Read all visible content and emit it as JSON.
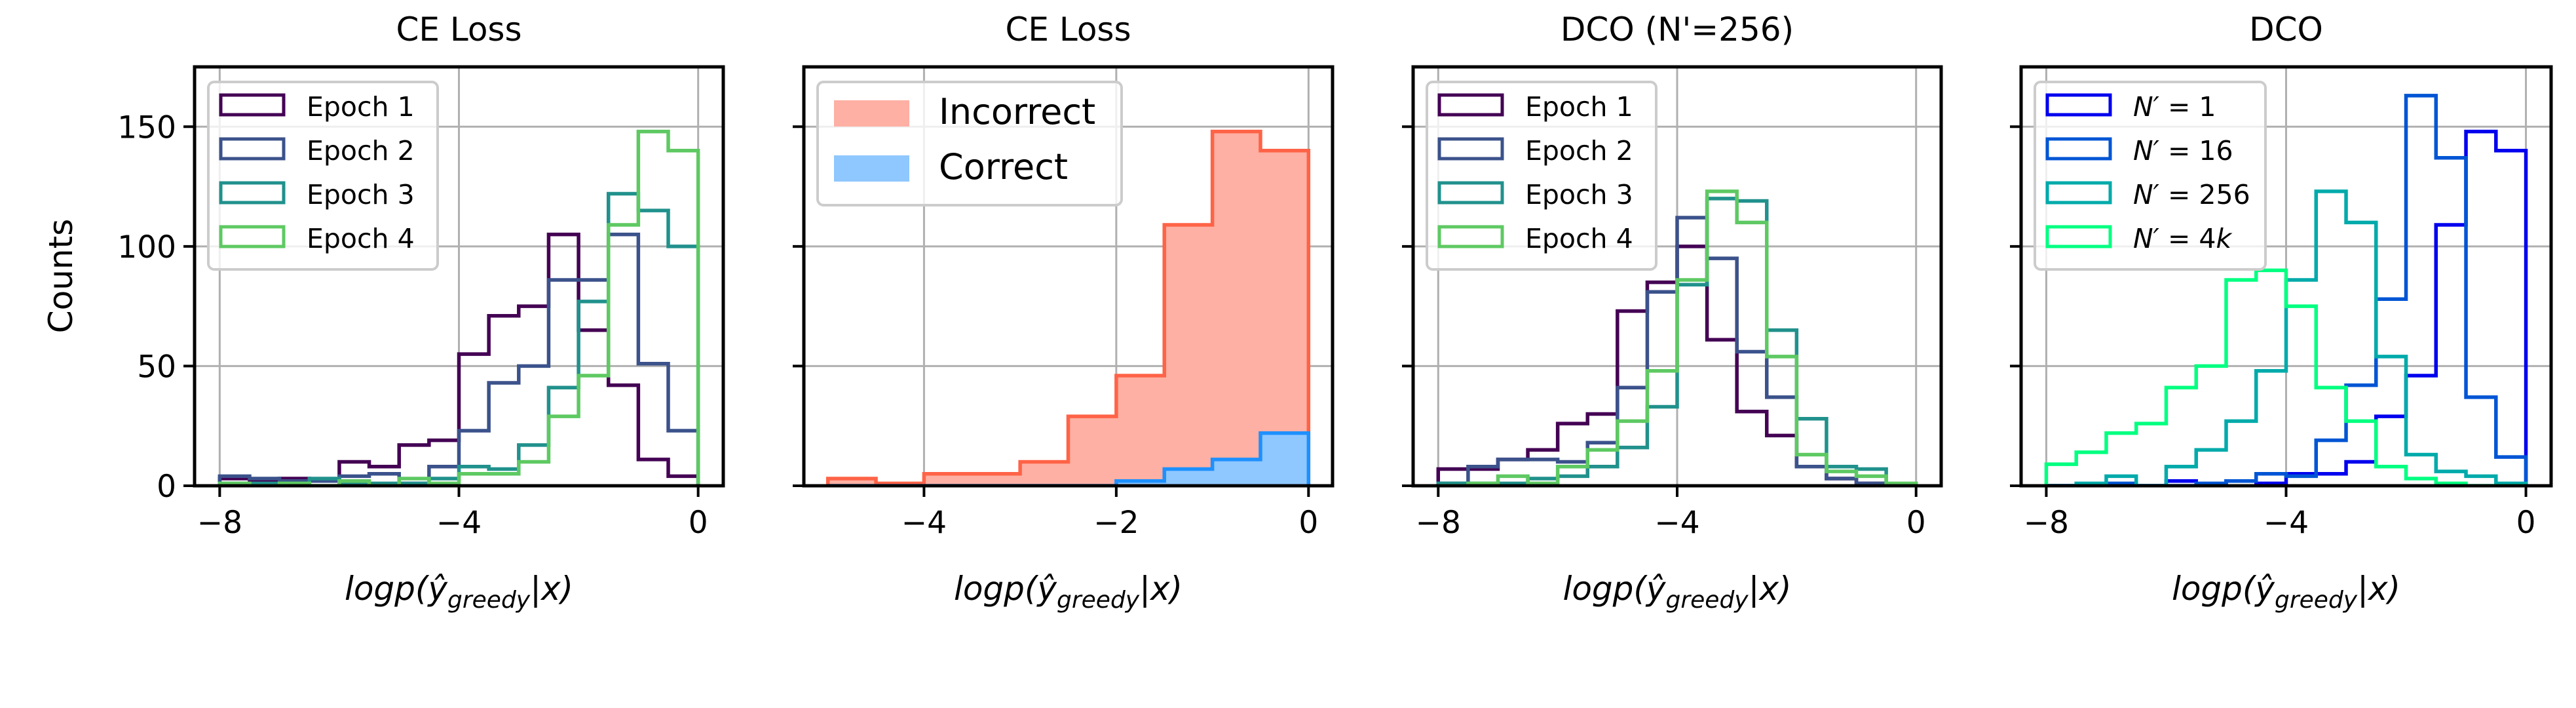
{
  "figure": {
    "ylabel": "Counts",
    "xlabel_main": "logp(",
    "xlabel_hat": "ŷ",
    "xlabel_sub": "greedy",
    "xlabel_tail": "|x)"
  },
  "chart_data": [
    {
      "type": "histogram-step",
      "title": "CE Loss",
      "xlabel": "logp(ŷ_greedy|x)",
      "ylabel": "Counts",
      "bin_edges_start": -8,
      "bin_width": 0.5,
      "xlim": [
        -8.42,
        0.42
      ],
      "ylim": [
        0,
        175
      ],
      "xticks": [
        -8,
        -4,
        0
      ],
      "xtick_labels": [
        "−8",
        "−4",
        "0"
      ],
      "yticks": [
        0,
        50,
        100,
        150
      ],
      "ytick_labels": [
        "0",
        "50",
        "100",
        "150"
      ],
      "grid": true,
      "legend_position": "upper-left",
      "legend_size": "small",
      "series": [
        {
          "name": "Epoch 1",
          "color": "#440154",
          "fill": false,
          "values": [
            3,
            2,
            3,
            2,
            10,
            8,
            17,
            19,
            55,
            71,
            75,
            105,
            65,
            42,
            11,
            4
          ]
        },
        {
          "name": "Epoch 2",
          "color": "#3b528b",
          "fill": false,
          "values": [
            4,
            3,
            2,
            2,
            4,
            5,
            1,
            8,
            23,
            43,
            50,
            86,
            86,
            105,
            51,
            23
          ]
        },
        {
          "name": "Epoch 3",
          "color": "#21918c",
          "fill": false,
          "values": [
            1,
            1,
            1,
            3,
            1,
            1,
            1,
            3,
            8,
            7,
            17,
            41,
            77,
            122,
            115,
            100
          ]
        },
        {
          "name": "Epoch 4",
          "color": "#5ec962",
          "fill": false,
          "values": [
            1,
            0,
            1,
            0,
            2,
            0,
            3,
            1,
            5,
            5,
            10,
            29,
            46,
            109,
            148,
            140
          ]
        }
      ]
    },
    {
      "type": "histogram-step-filled",
      "title": "CE Loss",
      "xlabel": "logp(ŷ_greedy|x)",
      "bin_edges_start": -5,
      "bin_width": 0.5,
      "xlim": [
        -5.25,
        0.25
      ],
      "ylim": [
        0,
        175
      ],
      "xticks": [
        -4,
        -2,
        0
      ],
      "xtick_labels": [
        "−4",
        "−2",
        "0"
      ],
      "yticks": [
        0,
        50,
        100,
        150
      ],
      "grid": true,
      "legend_position": "upper-left",
      "legend_size": "large",
      "series": [
        {
          "name": "Incorrect",
          "color": "#ff6347",
          "fill_color": "#fdb0a3",
          "fill": true,
          "values": [
            3,
            1,
            5,
            5,
            10,
            29,
            46,
            109,
            148,
            140
          ]
        },
        {
          "name": "Correct",
          "color": "#1e90ff",
          "fill_color": "#8fc7ff",
          "fill": true,
          "values": [
            0,
            0,
            0,
            0,
            0,
            0,
            2,
            7,
            11,
            22
          ]
        }
      ]
    },
    {
      "type": "histogram-step",
      "title": "DCO (N'=256)",
      "xlabel": "logp(ŷ_greedy|x)",
      "bin_edges_start": -8,
      "bin_width": 0.5,
      "xlim": [
        -8.42,
        0.42
      ],
      "ylim": [
        0,
        175
      ],
      "xticks": [
        -8,
        -4,
        0
      ],
      "xtick_labels": [
        "−8",
        "−4",
        "0"
      ],
      "yticks": [
        0,
        50,
        100,
        150
      ],
      "grid": true,
      "legend_position": "upper-left",
      "legend_size": "small",
      "series": [
        {
          "name": "Epoch 1",
          "color": "#440154",
          "fill": false,
          "values": [
            7,
            7,
            11,
            15,
            26,
            30,
            73,
            85,
            100,
            61,
            31,
            21,
            8,
            3,
            1,
            0
          ]
        },
        {
          "name": "Epoch 2",
          "color": "#3b528b",
          "fill": false,
          "values": [
            1,
            8,
            11,
            11,
            10,
            18,
            41,
            81,
            112,
            95,
            56,
            37,
            8,
            3,
            1,
            0
          ]
        },
        {
          "name": "Epoch 3",
          "color": "#21918c",
          "fill": false,
          "values": [
            1,
            1,
            1,
            3,
            4,
            8,
            16,
            33,
            84,
            120,
            119,
            65,
            28,
            8,
            7,
            0
          ]
        },
        {
          "name": "Epoch 4",
          "color": "#5ec962",
          "fill": false,
          "values": [
            0,
            1,
            4,
            1,
            8,
            15,
            27,
            48,
            86,
            123,
            110,
            54,
            13,
            6,
            4,
            1
          ]
        }
      ]
    },
    {
      "type": "histogram-step",
      "title": "DCO",
      "xlabel": "logp(ŷ_greedy|x)",
      "bin_edges_start": -8,
      "bin_width": 0.5,
      "xlim": [
        -8.42,
        0.42
      ],
      "ylim": [
        0,
        175
      ],
      "xticks": [
        -8,
        -4,
        0
      ],
      "xtick_labels": [
        "−8",
        "−4",
        "0"
      ],
      "yticks": [
        0,
        50,
        100,
        150
      ],
      "grid": true,
      "legend_position": "upper-left",
      "legend_size": "small",
      "legend_math": true,
      "series": [
        {
          "name": "N′ = 1",
          "legend_value": "1",
          "color": "#0000ee",
          "fill": false,
          "values": [
            0,
            0,
            0,
            0,
            2,
            0,
            2,
            1,
            5,
            5,
            10,
            29,
            46,
            109,
            148,
            140
          ]
        },
        {
          "name": "N′ = 16",
          "legend_value": "16",
          "color": "#0055d4",
          "fill": false,
          "values": [
            0,
            0,
            1,
            0,
            0,
            1,
            2,
            5,
            4,
            19,
            42,
            78,
            163,
            137,
            37,
            12
          ]
        },
        {
          "name": "N′ = 256",
          "legend_value": "256",
          "color": "#00aaaa",
          "fill": false,
          "values": [
            0,
            1,
            4,
            0,
            8,
            15,
            27,
            48,
            86,
            123,
            110,
            54,
            13,
            6,
            4,
            1
          ]
        },
        {
          "name": "N′ = 4k",
          "legend_value": "4k",
          "color": "#00ff80",
          "fill": false,
          "values": [
            9,
            14,
            22,
            26,
            41,
            50,
            86,
            90,
            75,
            41,
            27,
            8,
            3,
            1,
            0,
            0
          ]
        }
      ]
    }
  ]
}
